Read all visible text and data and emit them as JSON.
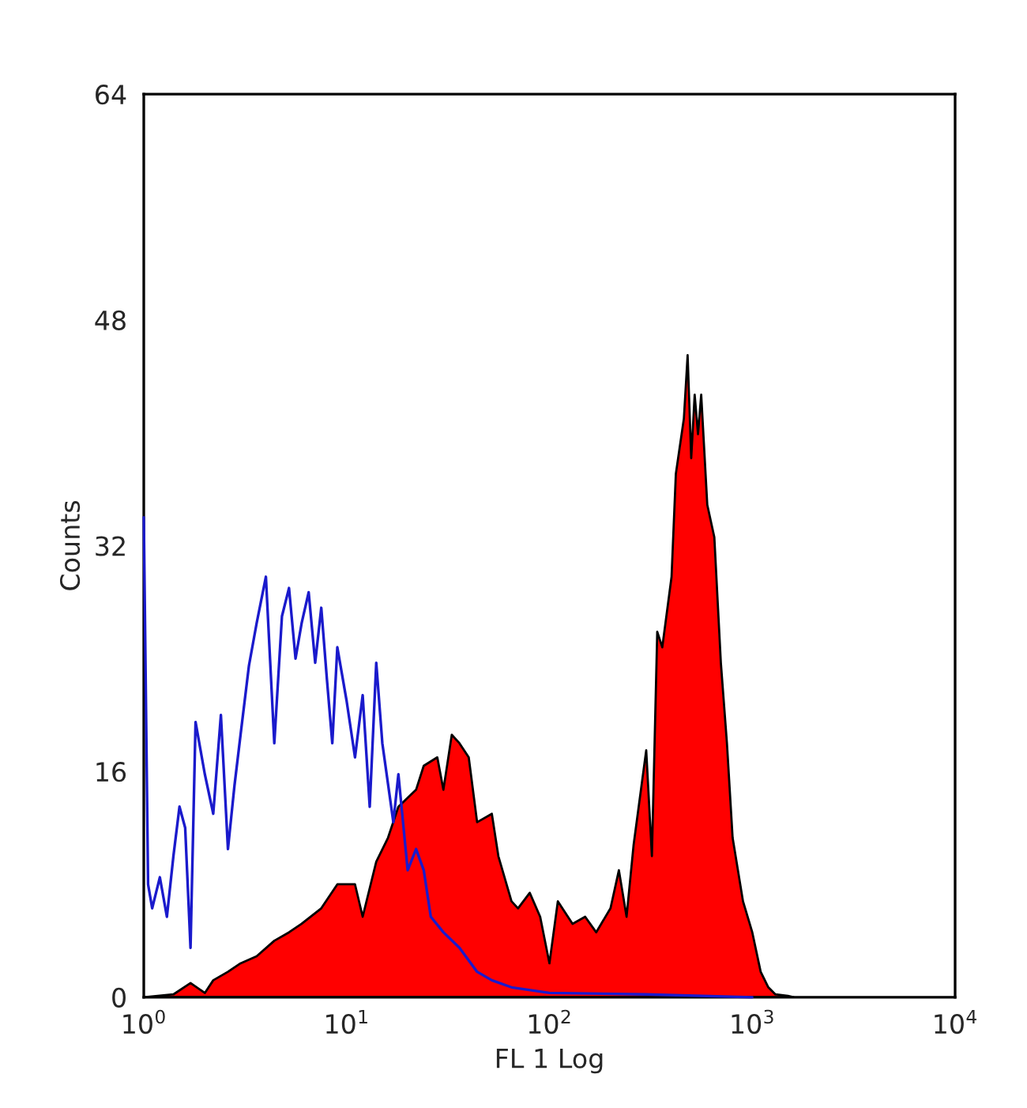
{
  "chart_data": {
    "type": "line",
    "xlabel": "FL 1 Log",
    "ylabel": "Counts",
    "log": "x",
    "xlim": [
      1,
      10000
    ],
    "xticks": [
      {
        "value": 1,
        "label": "10$^{0}$"
      },
      {
        "value": 10,
        "label": "10$^{1}$"
      },
      {
        "value": 100,
        "label": "10$^{2}$"
      },
      {
        "value": 1000,
        "label": "10$^{3}$"
      },
      {
        "value": 10000,
        "label": "10$^{4}$"
      }
    ],
    "ylim": [
      0,
      64
    ],
    "yticks": [
      0,
      16,
      32,
      48,
      64
    ],
    "grid": false,
    "series": [
      {
        "type": "area",
        "color": "#ff0000",
        "x": [
          1,
          1.4,
          1.7,
          2,
          2.2,
          2.6,
          3,
          3.6,
          4.4,
          5.2,
          6,
          7.5,
          9,
          11,
          12,
          14,
          16,
          18,
          22,
          24,
          28,
          30,
          33,
          36,
          40,
          44,
          52,
          56,
          65,
          70,
          80,
          90,
          100,
          110,
          130,
          150,
          170,
          200,
          220,
          240,
          260,
          300,
          320,
          340,
          360,
          400,
          420,
          460,
          480,
          500,
          520,
          540,
          560,
          600,
          650,
          700,
          750,
          800,
          900,
          1000,
          1100,
          1200,
          1300,
          1500,
          1600
        ],
        "values": [
          0,
          0.2,
          1,
          0.3,
          1.2,
          1.8,
          2.4,
          2.9,
          4,
          4.6,
          5.2,
          6.3,
          8,
          8,
          5.7,
          9.6,
          11.3,
          13.5,
          14.7,
          16.4,
          17,
          14.7,
          18.6,
          18,
          17,
          12.4,
          13,
          10,
          6.8,
          6.3,
          7.4,
          5.7,
          2.4,
          6.8,
          5.2,
          5.7,
          4.6,
          6.3,
          9,
          5.7,
          10.8,
          17.5,
          10,
          25.9,
          24.8,
          29.8,
          37.1,
          41,
          45.5,
          38.2,
          42.7,
          39.9,
          42.7,
          34.9,
          32.6,
          23.7,
          18,
          11.3,
          6.8,
          4.6,
          1.8,
          0.7,
          0.2,
          0.1,
          0
        ]
      },
      {
        "color": "#1a1acc",
        "x": [
          1,
          1.05,
          1.1,
          1.2,
          1.3,
          1.4,
          1.5,
          1.6,
          1.7,
          1.8,
          2,
          2.2,
          2.4,
          2.6,
          2.8,
          3,
          3.3,
          3.6,
          4,
          4.4,
          4.8,
          5.2,
          5.6,
          6,
          6.5,
          7,
          7.5,
          8,
          8.5,
          9,
          10,
          11,
          12,
          13,
          14,
          15,
          17,
          18,
          20,
          22,
          24,
          26,
          30,
          36,
          44,
          52,
          65,
          100,
          300,
          1000
        ],
        "values": [
          34,
          8,
          6.3,
          8.5,
          5.7,
          10,
          13.5,
          12,
          3.5,
          19.5,
          15.8,
          13,
          20,
          10.5,
          15,
          18.6,
          23.5,
          26.5,
          29.8,
          18,
          27,
          29,
          24,
          26.5,
          28.7,
          23.7,
          27.6,
          22.5,
          18,
          24.8,
          21,
          17,
          21.4,
          13.5,
          23.7,
          18,
          12.4,
          15.8,
          9,
          10.5,
          9,
          5.7,
          4.6,
          3.5,
          1.8,
          1.2,
          0.7,
          0.3,
          0.2,
          0
        ]
      }
    ]
  }
}
